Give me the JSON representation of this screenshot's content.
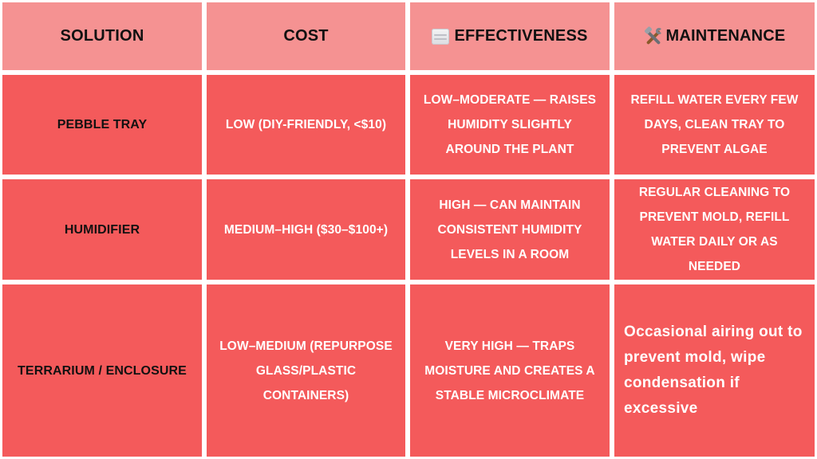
{
  "table": {
    "headers": {
      "solution": "Solution",
      "cost": "Cost",
      "effectiveness": "Effectiveness",
      "maintenance": "Maintenance"
    },
    "header_icons": {
      "effectiveness": "fog-icon",
      "maintenance": "hammer-and-wrench-icon"
    },
    "rows": [
      {
        "solution": "Pebble Tray",
        "cost": "Low (DIY-friendly, <$10)",
        "effectiveness": "Low–Moderate — Raises humidity slightly around the plant",
        "maintenance": "Refill water every few days, clean tray to prevent algae"
      },
      {
        "solution": "Humidifier",
        "cost": "Medium–High ($30–$100+)",
        "effectiveness": "High — Can maintain consistent humidity levels in a room",
        "maintenance": "Regular cleaning to prevent mold, refill water daily or as needed"
      },
      {
        "solution": "Terrarium / Enclosure",
        "cost": "Low–Medium (repurpose glass/plastic containers)",
        "effectiveness": "Very High — Traps moisture and creates a stable microclimate",
        "maintenance": "Occasional airing out to prevent mold, wipe condensation if excessive"
      }
    ]
  },
  "colors": {
    "header_bg": "#f59292",
    "body_bg": "#f45a5b",
    "grid_line": "#ffffff",
    "header_text": "#111111",
    "body_text": "#ffffff"
  }
}
